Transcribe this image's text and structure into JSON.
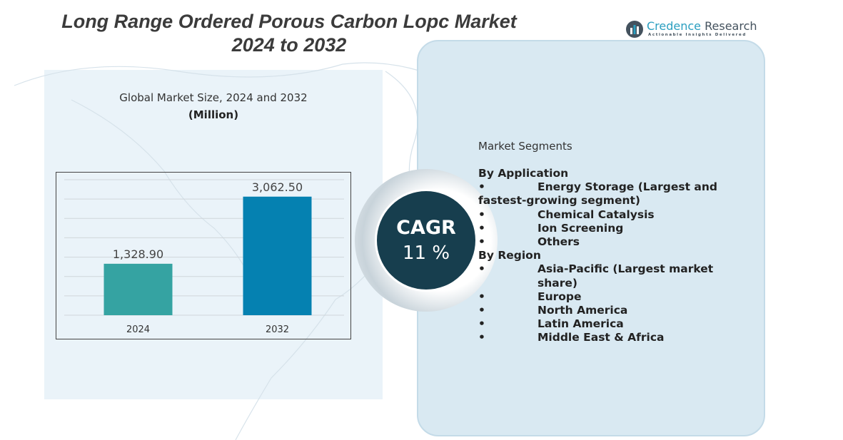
{
  "title": "Long Range Ordered Porous Carbon Lopc Market 2024 to 2032",
  "logo": {
    "name_part1": "Credence",
    "name_part2": "Research",
    "tagline": "Actionable Insights Delivered"
  },
  "chart_data": {
    "type": "bar",
    "title": "Global Market Size, 2024 and 2032",
    "ylabel": "(Million)",
    "xlabel": "",
    "categories": [
      "2024",
      "2032"
    ],
    "values": [
      1328.9,
      3062.5
    ],
    "data_labels": [
      "1,328.90",
      "3,062.50"
    ],
    "colors": [
      "#35a3a2",
      "#0581b1"
    ],
    "ylim": [
      0,
      3500
    ],
    "grid": true
  },
  "cagr": {
    "label": "CAGR",
    "value": "11 %"
  },
  "segments": {
    "title": "Market Segments",
    "groups": [
      {
        "heading": "By Application",
        "items": [
          "Energy Storage (Largest and fastest-growing segment)",
          "Chemical Catalysis",
          "Ion Screening",
          "Others"
        ]
      },
      {
        "heading": "By Region",
        "items": [
          "Asia-Pacific (Largest market share)",
          "Europe",
          "North America",
          "Latin America",
          "Middle East & Africa"
        ]
      }
    ],
    "bullet": "•"
  }
}
